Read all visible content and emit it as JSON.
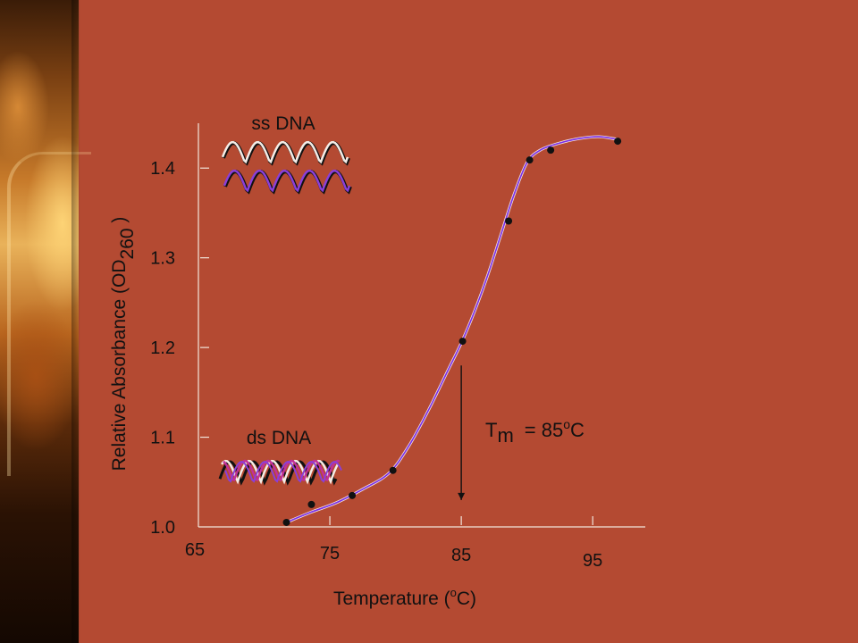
{
  "chart_data": {
    "type": "line",
    "title": "",
    "xlabel": "Temperature (°C)",
    "xlabel_prefix": "Temperature (",
    "xlabel_sup": "o",
    "xlabel_suffix": "C)",
    "ylabel": "Relative Absorbance (OD260)",
    "ylabel_prefix": "Relative Absorbance (OD",
    "ylabel_sub": "260",
    "ylabel_suffix": " )",
    "xlim": [
      65,
      99
    ],
    "ylim": [
      1.0,
      1.45
    ],
    "x_ticks": [
      65,
      75,
      85,
      95
    ],
    "x_tick_labels": [
      "65",
      "75",
      "85",
      "95"
    ],
    "y_ticks": [
      1.0,
      1.1,
      1.2,
      1.3,
      1.4
    ],
    "y_tick_labels": [
      "1.0",
      "1.1",
      "1.2",
      "1.3",
      "1.4"
    ],
    "series": [
      {
        "points_x": [
          71.7,
          73.6,
          76.7,
          79.8,
          85.1,
          88.6,
          90.2,
          91.8,
          96.9
        ],
        "points_y": [
          1.005,
          1.025,
          1.035,
          1.063,
          1.207,
          1.341,
          1.409,
          1.42,
          1.43
        ],
        "curve_x": [
          71.7,
          73.5,
          75.5,
          77.5,
          79.5,
          81.0,
          82.5,
          84.0,
          85.0,
          86.0,
          87.0,
          88.0,
          89.0,
          90.0,
          91.0,
          92.5,
          94.0,
          95.5,
          96.9
        ],
        "curve_y": [
          1.005,
          1.016,
          1.027,
          1.042,
          1.06,
          1.09,
          1.13,
          1.175,
          1.205,
          1.24,
          1.28,
          1.325,
          1.37,
          1.406,
          1.42,
          1.428,
          1.433,
          1.435,
          1.432
        ],
        "point_color": "#111111",
        "line_color": "#7a2ee8"
      }
    ],
    "annotations": {
      "tm_label": "Tm",
      "tm_T": "T",
      "tm_sub": "m",
      "tm_value_prefix": "= 85",
      "tm_value_sup": "o",
      "tm_value_suffix": "C",
      "tm_x": 85,
      "tm_arrow_from_y": 1.18,
      "tm_arrow_to_y": 1.03,
      "ss_label": "ss DNA",
      "ds_label": "ds DNA"
    },
    "grid": false,
    "legend": "none"
  },
  "colors": {
    "background": "#b44a32",
    "axis": "#f2e6dc",
    "strand_white": "#f4ece6",
    "strand_purple": "#8a3fd8",
    "strand_magenta": "#c0309a",
    "strand_black": "#111111"
  }
}
